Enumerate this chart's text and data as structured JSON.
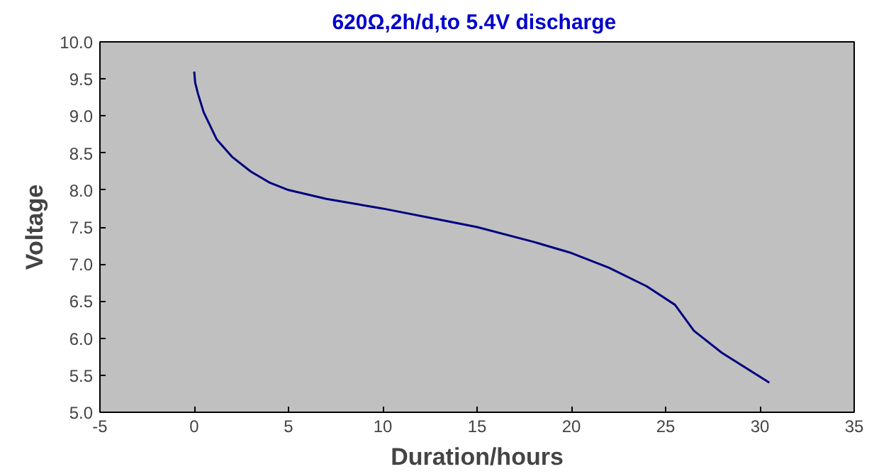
{
  "chart_data": {
    "type": "line",
    "title": "620Ω,2h/d,to 5.4V  discharge",
    "xlabel": "Duration/hours",
    "ylabel": "Voltage",
    "xlim": [
      -5,
      35
    ],
    "xticks": [
      -5,
      0,
      5,
      10,
      15,
      20,
      25,
      30,
      35
    ],
    "ylim": [
      5.0,
      10.0
    ],
    "yticks": [
      {
        "value": 5,
        "label": "5.0"
      },
      {
        "value": 5.5,
        "label": "5.5"
      },
      {
        "value": 6,
        "label": "6.0"
      },
      {
        "value": 6.5,
        "label": "6.5"
      },
      {
        "value": 7,
        "label": "7.0"
      },
      {
        "value": 7.5,
        "label": "7.5"
      },
      {
        "value": 8,
        "label": "8.0"
      },
      {
        "value": 8.5,
        "label": "8.5"
      },
      {
        "value": 9,
        "label": "9.0"
      },
      {
        "value": 9.5,
        "label": "9.5"
      },
      {
        "value": 10,
        "label": "10.0"
      }
    ],
    "grid": false,
    "series": [
      {
        "color": "#000080",
        "x": [
          0.0,
          0.05,
          0.2,
          0.5,
          1.2,
          2,
          3,
          4,
          5,
          7,
          10,
          13,
          15,
          18,
          20,
          22,
          24,
          25.5,
          26.5,
          28,
          30.5
        ],
        "values": [
          9.6,
          9.45,
          9.3,
          9.05,
          8.68,
          8.45,
          8.25,
          8.1,
          8.0,
          7.88,
          7.75,
          7.6,
          7.5,
          7.3,
          7.15,
          6.95,
          6.7,
          6.45,
          6.1,
          5.8,
          5.4
        ]
      }
    ]
  }
}
